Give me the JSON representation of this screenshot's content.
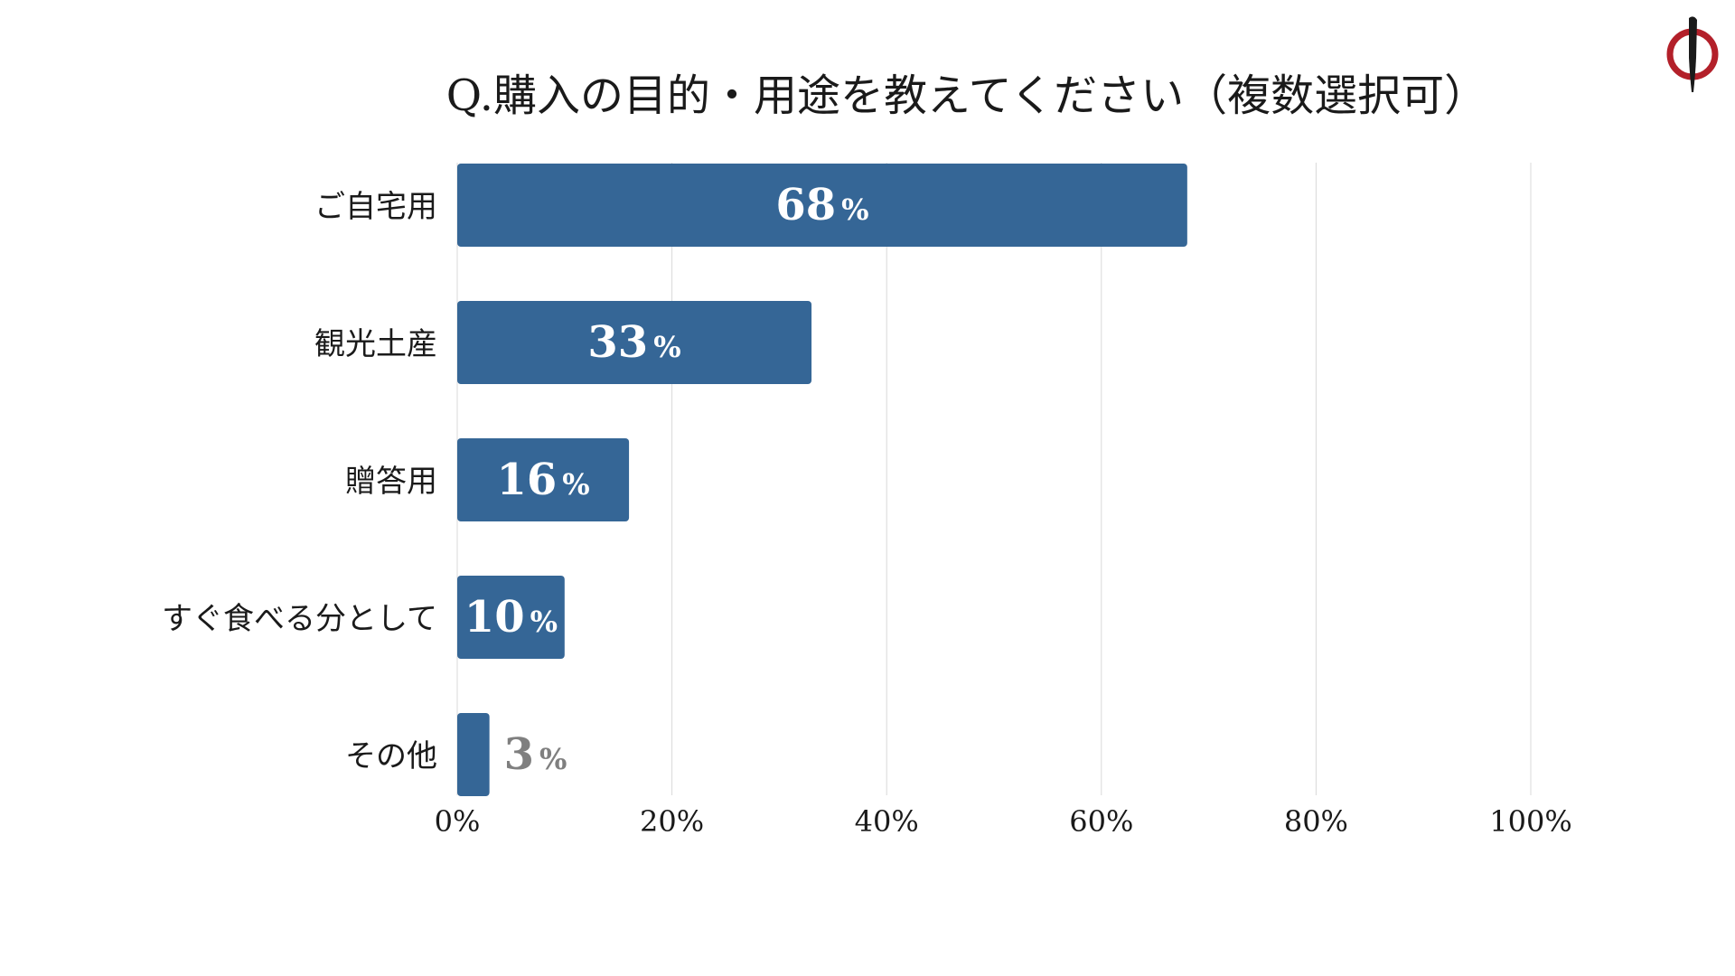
{
  "chart_data": {
    "type": "bar",
    "orientation": "horizontal",
    "title": "Q.購入の目的・用途を教えてください（複数選択可）",
    "categories": [
      "ご自宅用",
      "観光土産",
      "贈答用",
      "すぐ食べる分として",
      "その他"
    ],
    "values": [
      68,
      33,
      16,
      10,
      3
    ],
    "value_suffix": "%",
    "xlim": [
      0,
      100
    ],
    "xticks": [
      0,
      20,
      40,
      60,
      80,
      100
    ],
    "xtick_labels": [
      "0%",
      "20%",
      "40%",
      "60%",
      "80%",
      "100%"
    ],
    "xlabel": "",
    "ylabel": "",
    "grid": true,
    "legend": "none",
    "colors": {
      "bar": "#356696",
      "label_inside": "#ffffff",
      "label_outside": "#7f7f7f",
      "grid": "#d9d9d9",
      "text": "#1a1a1a",
      "logo_red": "#b3202a",
      "logo_black": "#1a1a1a"
    }
  },
  "logo": {
    "icon": "brand-logo-icon"
  }
}
